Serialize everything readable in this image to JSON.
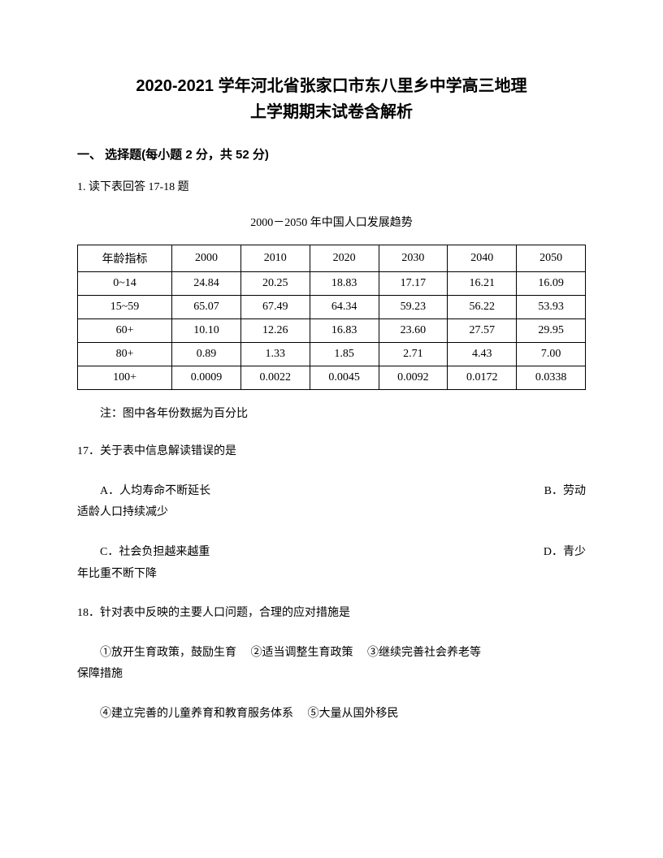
{
  "title_line1": "2020-2021 学年河北省张家口市东八里乡中学高三地理",
  "title_line2": "上学期期末试卷含解析",
  "section_header": "一、 选择题(每小题 2 分，共 52 分)",
  "question1_intro": "1. 读下表回答 17-18 题",
  "table_title": "2000－2050 年中国人口发展趋势",
  "table": {
    "columns": [
      "年龄指标",
      "2000",
      "2010",
      "2020",
      "2030",
      "2040",
      "2050"
    ],
    "rows": [
      [
        "0~14",
        "24.84",
        "20.25",
        "18.83",
        "17.17",
        "16.21",
        "16.09"
      ],
      [
        "15~59",
        "65.07",
        "67.49",
        "64.34",
        "59.23",
        "56.22",
        "53.93"
      ],
      [
        "60+",
        "10.10",
        "12.26",
        "16.83",
        "23.60",
        "27.57",
        "29.95"
      ],
      [
        "80+",
        "0.89",
        "1.33",
        "1.85",
        "2.71",
        "4.43",
        "7.00"
      ],
      [
        "100+",
        "0.0009",
        "0.0022",
        "0.0045",
        "0.0092",
        "0.0172",
        "0.0338"
      ]
    ]
  },
  "table_note": "注：图中各年份数据为百分比",
  "q17_text": "17．关于表中信息解读错误的是",
  "q17_optA": "A．人均寿命不断延长",
  "q17_optB": "B．劳动",
  "q17_optB_cont": "适龄人口持续减少",
  "q17_optC": "C．社会负担越来越重",
  "q17_optD": "D．青少",
  "q17_optD_cont": "年比重不断下降",
  "q18_text": "18．针对表中反映的主要人口问题，合理的应对措施是",
  "q18_line1": "①放开生育政策，鼓励生育　 ②适当调整生育政策　 ③继续完善社会养老等",
  "q18_line1_cont": "保障措施",
  "q18_line2": "④建立完善的儿童养育和教育服务体系　 ⑤大量从国外移民"
}
